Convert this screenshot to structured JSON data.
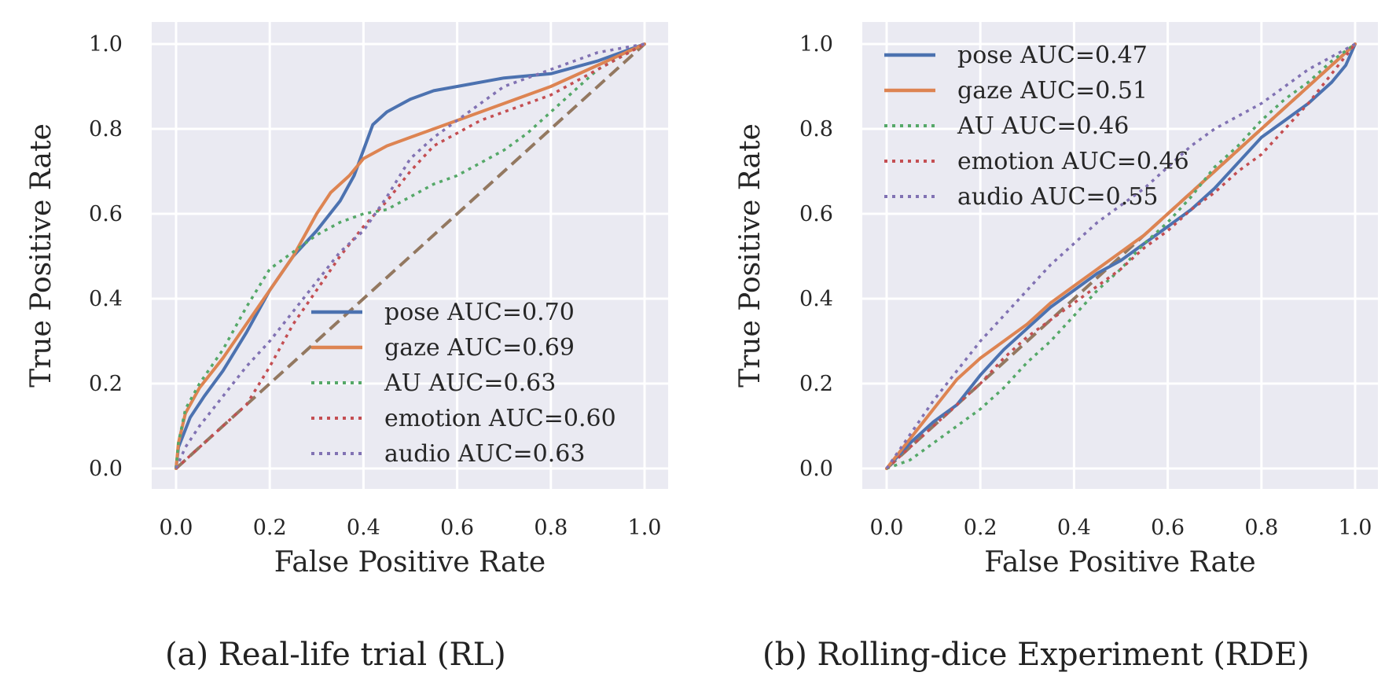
{
  "captions": {
    "a": "(a) Real-life trial (RL)",
    "b": "(b) Rolling-dice Experiment (RDE)"
  },
  "colors": {
    "pose": "#4c72b0",
    "gaze": "#dd8452",
    "AU": "#55a868",
    "emotion": "#c44e52",
    "audio": "#8172b3",
    "chance": "#937860",
    "background": "#eaeaf2",
    "grid": "#ffffff"
  },
  "chart_data": [
    {
      "type": "line",
      "title": "(a) Real-life trial (RL)",
      "xlabel": "False Positive Rate",
      "ylabel": "True Positive Rate",
      "xlim": [
        0.0,
        1.0
      ],
      "ylim": [
        0.0,
        1.0
      ],
      "xticks": [
        "0.0",
        "0.2",
        "0.4",
        "0.6",
        "0.8",
        "1.0"
      ],
      "yticks": [
        "0.0",
        "0.2",
        "0.4",
        "0.6",
        "0.8",
        "1.0"
      ],
      "grid": true,
      "legend_position": "lower-right",
      "chance_line": {
        "x": [
          0,
          1
        ],
        "y": [
          0,
          1
        ],
        "style": "dashed"
      },
      "series": [
        {
          "name": "pose",
          "label": "pose AUC=0.70",
          "auc": 0.7,
          "style": "solid",
          "x": [
            0,
            0.005,
            0.03,
            0.06,
            0.1,
            0.15,
            0.2,
            0.25,
            0.3,
            0.35,
            0.38,
            0.4,
            0.42,
            0.45,
            0.5,
            0.55,
            0.6,
            0.7,
            0.8,
            0.9,
            1.0
          ],
          "y": [
            0,
            0.05,
            0.12,
            0.17,
            0.23,
            0.32,
            0.42,
            0.5,
            0.56,
            0.63,
            0.69,
            0.75,
            0.81,
            0.84,
            0.87,
            0.89,
            0.9,
            0.92,
            0.93,
            0.96,
            1.0
          ]
        },
        {
          "name": "gaze",
          "label": "gaze AUC=0.69",
          "auc": 0.69,
          "style": "solid",
          "x": [
            0,
            0.005,
            0.02,
            0.05,
            0.1,
            0.15,
            0.2,
            0.25,
            0.28,
            0.3,
            0.33,
            0.37,
            0.4,
            0.45,
            0.5,
            0.55,
            0.6,
            0.7,
            0.8,
            0.9,
            1.0
          ],
          "y": [
            0,
            0.06,
            0.13,
            0.19,
            0.26,
            0.34,
            0.42,
            0.5,
            0.56,
            0.6,
            0.65,
            0.69,
            0.73,
            0.76,
            0.78,
            0.8,
            0.82,
            0.86,
            0.9,
            0.95,
            1.0
          ]
        },
        {
          "name": "AU",
          "label": "AU AUC=0.63",
          "auc": 0.63,
          "style": "dotted",
          "x": [
            0,
            0.005,
            0.02,
            0.05,
            0.1,
            0.15,
            0.2,
            0.25,
            0.3,
            0.35,
            0.4,
            0.45,
            0.5,
            0.55,
            0.6,
            0.65,
            0.7,
            0.75,
            0.8,
            0.85,
            0.9,
            0.95,
            1.0
          ],
          "y": [
            0,
            0.06,
            0.14,
            0.2,
            0.28,
            0.38,
            0.47,
            0.51,
            0.55,
            0.58,
            0.6,
            0.61,
            0.64,
            0.67,
            0.69,
            0.72,
            0.75,
            0.79,
            0.84,
            0.89,
            0.94,
            0.97,
            1.0
          ]
        },
        {
          "name": "emotion",
          "label": "emotion AUC=0.60",
          "auc": 0.6,
          "style": "dotted",
          "x": [
            0,
            0.02,
            0.05,
            0.1,
            0.15,
            0.2,
            0.25,
            0.3,
            0.35,
            0.4,
            0.45,
            0.5,
            0.55,
            0.6,
            0.65,
            0.7,
            0.75,
            0.8,
            0.85,
            0.9,
            0.95,
            1.0
          ],
          "y": [
            0,
            0.02,
            0.05,
            0.1,
            0.15,
            0.24,
            0.34,
            0.42,
            0.5,
            0.57,
            0.63,
            0.7,
            0.76,
            0.79,
            0.82,
            0.84,
            0.86,
            0.88,
            0.91,
            0.94,
            0.97,
            1.0
          ]
        },
        {
          "name": "audio",
          "label": "audio AUC=0.63",
          "auc": 0.63,
          "style": "dotted",
          "x": [
            0,
            0.02,
            0.05,
            0.1,
            0.15,
            0.2,
            0.25,
            0.3,
            0.35,
            0.4,
            0.45,
            0.5,
            0.55,
            0.6,
            0.65,
            0.7,
            0.75,
            0.8,
            0.85,
            0.9,
            0.95,
            1.0
          ],
          "y": [
            0,
            0.05,
            0.1,
            0.17,
            0.24,
            0.3,
            0.37,
            0.44,
            0.51,
            0.56,
            0.64,
            0.73,
            0.78,
            0.82,
            0.86,
            0.9,
            0.92,
            0.94,
            0.96,
            0.98,
            0.99,
            1.0
          ]
        }
      ]
    },
    {
      "type": "line",
      "title": "(b) Rolling-dice Experiment (RDE)",
      "xlabel": "False Positive Rate",
      "ylabel": "True Positive Rate",
      "xlim": [
        0.0,
        1.0
      ],
      "ylim": [
        0.0,
        1.0
      ],
      "xticks": [
        "0.0",
        "0.2",
        "0.4",
        "0.6",
        "0.8",
        "1.0"
      ],
      "yticks": [
        "0.0",
        "0.2",
        "0.4",
        "0.6",
        "0.8",
        "1.0"
      ],
      "grid": true,
      "legend_position": "top-left",
      "chance_line": {
        "x": [
          0,
          1
        ],
        "y": [
          0,
          1
        ],
        "style": "dashed"
      },
      "series": [
        {
          "name": "pose",
          "label": "pose AUC=0.47",
          "auc": 0.47,
          "style": "solid",
          "x": [
            0,
            0.05,
            0.1,
            0.15,
            0.2,
            0.25,
            0.3,
            0.35,
            0.4,
            0.45,
            0.5,
            0.55,
            0.6,
            0.65,
            0.7,
            0.75,
            0.8,
            0.85,
            0.9,
            0.95,
            0.98,
            1.0
          ],
          "y": [
            0,
            0.06,
            0.11,
            0.15,
            0.22,
            0.28,
            0.33,
            0.38,
            0.42,
            0.46,
            0.49,
            0.53,
            0.57,
            0.61,
            0.66,
            0.72,
            0.78,
            0.82,
            0.86,
            0.91,
            0.95,
            1.0
          ]
        },
        {
          "name": "gaze",
          "label": "gaze AUC=0.51",
          "auc": 0.51,
          "style": "solid",
          "x": [
            0,
            0.05,
            0.1,
            0.15,
            0.2,
            0.25,
            0.3,
            0.35,
            0.4,
            0.45,
            0.5,
            0.55,
            0.6,
            0.65,
            0.7,
            0.75,
            0.8,
            0.85,
            0.9,
            0.95,
            1.0
          ],
          "y": [
            0,
            0.07,
            0.14,
            0.21,
            0.26,
            0.3,
            0.34,
            0.39,
            0.43,
            0.47,
            0.51,
            0.55,
            0.6,
            0.65,
            0.7,
            0.75,
            0.8,
            0.85,
            0.9,
            0.95,
            1.0
          ]
        },
        {
          "name": "AU",
          "label": "AU AUC=0.46",
          "auc": 0.46,
          "style": "dotted",
          "x": [
            0,
            0.05,
            0.1,
            0.15,
            0.2,
            0.25,
            0.3,
            0.35,
            0.4,
            0.45,
            0.5,
            0.55,
            0.6,
            0.65,
            0.7,
            0.75,
            0.8,
            0.85,
            0.9,
            0.95,
            1.0
          ],
          "y": [
            0,
            0.02,
            0.06,
            0.1,
            0.14,
            0.19,
            0.25,
            0.3,
            0.36,
            0.42,
            0.47,
            0.53,
            0.58,
            0.64,
            0.71,
            0.76,
            0.82,
            0.87,
            0.91,
            0.96,
            1.0
          ]
        },
        {
          "name": "emotion",
          "label": "emotion AUC=0.46",
          "auc": 0.46,
          "style": "dotted",
          "x": [
            0,
            0.05,
            0.1,
            0.15,
            0.2,
            0.25,
            0.3,
            0.35,
            0.4,
            0.45,
            0.5,
            0.55,
            0.6,
            0.65,
            0.7,
            0.75,
            0.8,
            0.85,
            0.9,
            0.95,
            1.0
          ],
          "y": [
            0,
            0.05,
            0.1,
            0.15,
            0.2,
            0.26,
            0.31,
            0.35,
            0.39,
            0.43,
            0.47,
            0.52,
            0.56,
            0.61,
            0.65,
            0.7,
            0.74,
            0.8,
            0.86,
            0.93,
            1.0
          ]
        },
        {
          "name": "audio",
          "label": "audio AUC=0.55",
          "auc": 0.55,
          "style": "dotted",
          "x": [
            0,
            0.05,
            0.1,
            0.15,
            0.2,
            0.25,
            0.3,
            0.35,
            0.4,
            0.45,
            0.5,
            0.55,
            0.6,
            0.65,
            0.7,
            0.75,
            0.8,
            0.85,
            0.9,
            0.95,
            1.0
          ],
          "y": [
            0,
            0.08,
            0.16,
            0.23,
            0.3,
            0.36,
            0.42,
            0.48,
            0.53,
            0.58,
            0.62,
            0.66,
            0.71,
            0.76,
            0.8,
            0.83,
            0.86,
            0.9,
            0.94,
            0.97,
            1.0
          ]
        }
      ]
    }
  ]
}
